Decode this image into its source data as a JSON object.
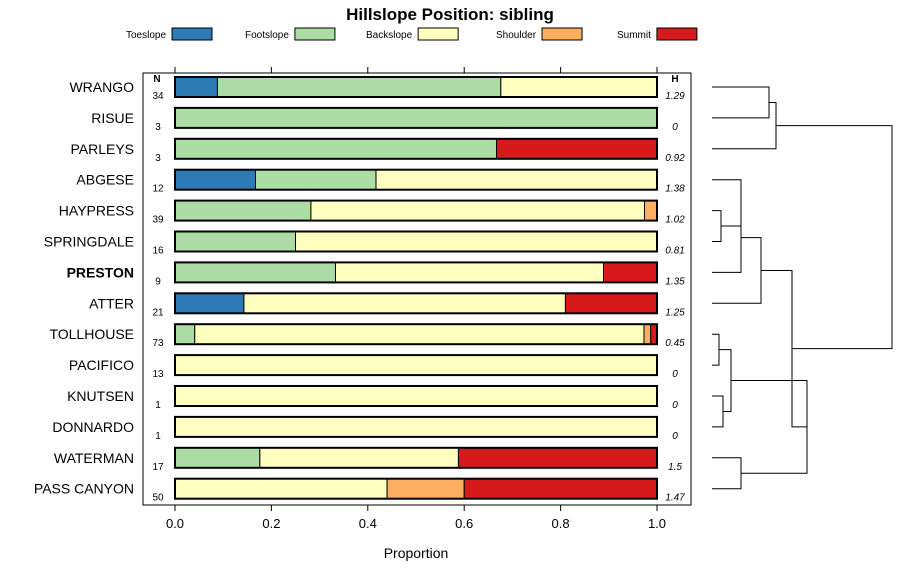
{
  "chart_data": {
    "type": "bar",
    "orientation": "horizontal",
    "stacked": true,
    "title": "Hillslope Position: sibling",
    "xlabel": "Proportion",
    "ylabel": "",
    "xlim": [
      0,
      1
    ],
    "x_ticks": [
      "0.0",
      "0.2",
      "0.4",
      "0.6",
      "0.8",
      "1.0"
    ],
    "legend": {
      "placement": "top"
    },
    "n_header": "N",
    "h_header": "H",
    "series": [
      {
        "name": "Toeslope",
        "color": "#2c7bb6"
      },
      {
        "name": "Footslope",
        "color": "#abdda4"
      },
      {
        "name": "Backslope",
        "color": "#ffffbf"
      },
      {
        "name": "Shoulder",
        "color": "#fdae61"
      },
      {
        "name": "Summit",
        "color": "#d7191c"
      }
    ],
    "rows": [
      {
        "label": "WRANGO",
        "n": "34",
        "h": "1.29",
        "bold": false,
        "values": [
          0.088,
          0.588,
          0.324,
          0,
          0
        ]
      },
      {
        "label": "RISUE",
        "n": "3",
        "h": "0",
        "bold": false,
        "values": [
          0,
          1.0,
          0,
          0,
          0
        ]
      },
      {
        "label": "PARLEYS",
        "n": "3",
        "h": "0.92",
        "bold": false,
        "values": [
          0,
          0.667,
          0,
          0,
          0.333
        ]
      },
      {
        "label": "ABGESE",
        "n": "12",
        "h": "1.38",
        "bold": false,
        "values": [
          0.167,
          0.25,
          0.583,
          0,
          0
        ]
      },
      {
        "label": "HAYPRESS",
        "n": "39",
        "h": "1.02",
        "bold": false,
        "values": [
          0,
          0.282,
          0.692,
          0.026,
          0
        ]
      },
      {
        "label": "SPRINGDALE",
        "n": "16",
        "h": "0.81",
        "bold": false,
        "values": [
          0,
          0.25,
          0.75,
          0,
          0
        ]
      },
      {
        "label": "PRESTON",
        "n": "9",
        "h": "1.35",
        "bold": true,
        "values": [
          0,
          0.333,
          0.556,
          0,
          0.111
        ]
      },
      {
        "label": "ATTER",
        "n": "21",
        "h": "1.25",
        "bold": false,
        "values": [
          0.143,
          0,
          0.667,
          0,
          0.19
        ]
      },
      {
        "label": "TOLLHOUSE",
        "n": "73",
        "h": "0.45",
        "bold": false,
        "values": [
          0,
          0.041,
          0.932,
          0.014,
          0.014
        ]
      },
      {
        "label": "PACIFICO",
        "n": "13",
        "h": "0",
        "bold": false,
        "values": [
          0,
          0,
          1.0,
          0,
          0
        ]
      },
      {
        "label": "KNUTSEN",
        "n": "1",
        "h": "0",
        "bold": false,
        "values": [
          0,
          0,
          1.0,
          0,
          0
        ]
      },
      {
        "label": "DONNARDO",
        "n": "1",
        "h": "0",
        "bold": false,
        "values": [
          0,
          0,
          1.0,
          0,
          0
        ]
      },
      {
        "label": "WATERMAN",
        "n": "17",
        "h": "1.5",
        "bold": false,
        "values": [
          0,
          0.176,
          0.412,
          0,
          0.412
        ]
      },
      {
        "label": "PASS CANYON",
        "n": "50",
        "h": "1.47",
        "bold": false,
        "values": [
          0,
          0,
          0.44,
          0.16,
          0.4
        ]
      }
    ]
  }
}
